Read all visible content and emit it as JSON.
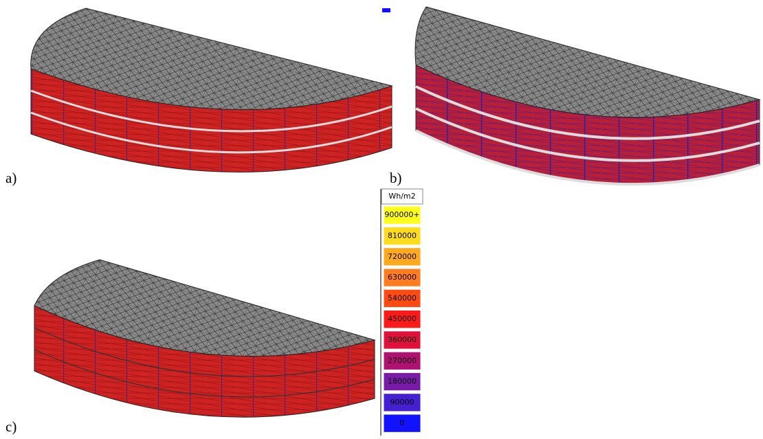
{
  "panels": [
    {
      "label": "a)"
    },
    {
      "label": "b)"
    },
    {
      "label": "c)"
    }
  ],
  "legend": {
    "title": "Wh/m2",
    "entries": [
      {
        "label": "900000+",
        "color": "#ffff1e"
      },
      {
        "label": "810000",
        "color": "#ffdc1e"
      },
      {
        "label": "720000",
        "color": "#ffaa1e"
      },
      {
        "label": "630000",
        "color": "#ff7d1e"
      },
      {
        "label": "540000",
        "color": "#ff4b12"
      },
      {
        "label": "450000",
        "color": "#ff1a1a"
      },
      {
        "label": "360000",
        "color": "#e0123c"
      },
      {
        "label": "270000",
        "color": "#b01272"
      },
      {
        "label": "180000",
        "color": "#7a1aa8"
      },
      {
        "label": "90000",
        "color": "#4420d2"
      },
      {
        "label": "0",
        "color": "#1212ff"
      }
    ]
  }
}
